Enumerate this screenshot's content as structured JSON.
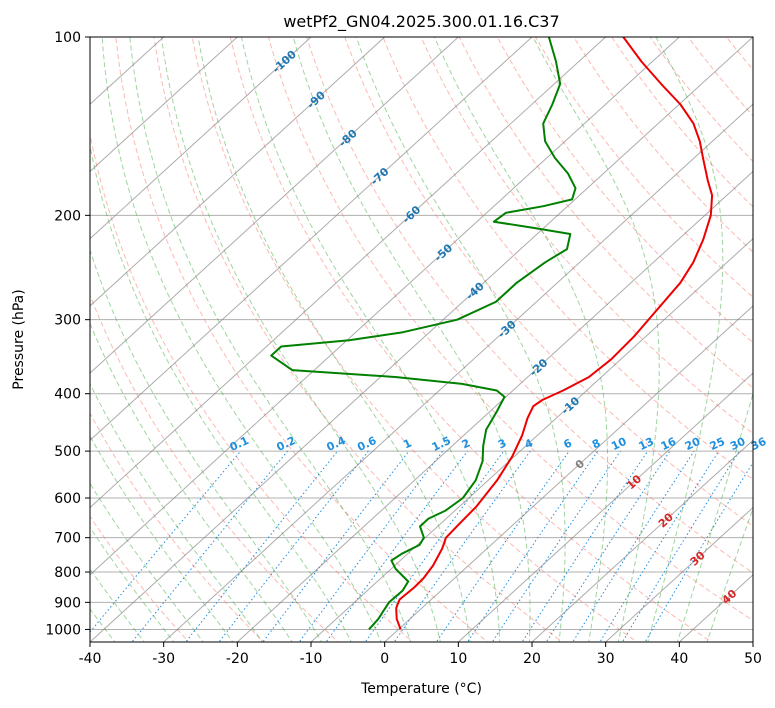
{
  "chart_data": {
    "type": "line",
    "title": "wetPf2_GN04.2025.300.01.16.C37",
    "xlabel": "Temperature (°C)",
    "ylabel": "Pressure (hPa)",
    "xlim": [
      -40,
      50
    ],
    "ylim": [
      1050,
      100
    ],
    "y_scale": "log",
    "x_ticks": [
      "-40",
      "-30",
      "-20",
      "-10",
      "0",
      "10",
      "20",
      "30",
      "40",
      "50"
    ],
    "y_ticks": [
      "100",
      "200",
      "300",
      "400",
      "500",
      "600",
      "700",
      "800",
      "900",
      "1000"
    ],
    "grid": true,
    "isotherm_labels": [
      "-100",
      "-90",
      "-80",
      "-70",
      "-60",
      "-50",
      "-40",
      "-30",
      "-20",
      "-10",
      "0",
      "10",
      "20",
      "30",
      "40"
    ],
    "mixing_ratio_labels": [
      "0.1",
      "0.2",
      "0.4",
      "0.6",
      "1",
      "1.5",
      "2",
      "3",
      "4",
      "6",
      "8",
      "10",
      "13",
      "16",
      "20",
      "25",
      "30",
      "36"
    ],
    "colors": {
      "temperature": "#ee0000",
      "dewpoint": "#008000",
      "dry_adiabat": "#fa8072",
      "moist_adiabat": "#2ca02c",
      "mixing_ratio": "#1f8fe0",
      "isotherm": "#808080",
      "isotherm_label_cold": "#1f77b4",
      "isotherm_label_warm": "#d62728",
      "isotherm_label_zero": "#808080"
    },
    "series": [
      {
        "role": "temperature",
        "points": [
          {
            "p": 1000,
            "t": 0.3
          },
          {
            "p": 960,
            "t": -1.8
          },
          {
            "p": 920,
            "t": -3.5
          },
          {
            "p": 890,
            "t": -4.3
          },
          {
            "p": 850,
            "t": -4.1
          },
          {
            "p": 820,
            "t": -4.2
          },
          {
            "p": 780,
            "t": -4.8
          },
          {
            "p": 730,
            "t": -6.1
          },
          {
            "p": 700,
            "t": -7.2
          },
          {
            "p": 670,
            "t": -7.4
          },
          {
            "p": 620,
            "t": -7.7
          },
          {
            "p": 560,
            "t": -8.8
          },
          {
            "p": 510,
            "t": -10.3
          },
          {
            "p": 470,
            "t": -12.1
          },
          {
            "p": 440,
            "t": -13.9
          },
          {
            "p": 420,
            "t": -14.9
          },
          {
            "p": 410,
            "t": -14.6
          },
          {
            "p": 395,
            "t": -13.2
          },
          {
            "p": 375,
            "t": -11.7
          },
          {
            "p": 350,
            "t": -11.3
          },
          {
            "p": 320,
            "t": -11.6
          },
          {
            "p": 290,
            "t": -12.4
          },
          {
            "p": 260,
            "t": -13.3
          },
          {
            "p": 240,
            "t": -14.6
          },
          {
            "p": 220,
            "t": -16.6
          },
          {
            "p": 200,
            "t": -19.2
          },
          {
            "p": 185,
            "t": -22.0
          },
          {
            "p": 175,
            "t": -24.7
          },
          {
            "p": 160,
            "t": -28.8
          },
          {
            "p": 150,
            "t": -31.7
          },
          {
            "p": 140,
            "t": -35.2
          },
          {
            "p": 130,
            "t": -39.8
          },
          {
            "p": 120,
            "t": -45.5
          },
          {
            "p": 110,
            "t": -51.5
          },
          {
            "p": 100,
            "t": -57.6
          }
        ]
      },
      {
        "role": "dewpoint",
        "points": [
          {
            "p": 1000,
            "t": -4.0
          },
          {
            "p": 960,
            "t": -4.3
          },
          {
            "p": 930,
            "t": -4.8
          },
          {
            "p": 900,
            "t": -5.3
          },
          {
            "p": 860,
            "t": -5.2
          },
          {
            "p": 830,
            "t": -5.8
          },
          {
            "p": 790,
            "t": -9.4
          },
          {
            "p": 765,
            "t": -11.2
          },
          {
            "p": 745,
            "t": -10.8
          },
          {
            "p": 720,
            "t": -9.7
          },
          {
            "p": 700,
            "t": -10.2
          },
          {
            "p": 670,
            "t": -12.4
          },
          {
            "p": 650,
            "t": -12.4
          },
          {
            "p": 630,
            "t": -11.3
          },
          {
            "p": 600,
            "t": -10.8
          },
          {
            "p": 560,
            "t": -11.7
          },
          {
            "p": 520,
            "t": -13.6
          },
          {
            "p": 490,
            "t": -15.8
          },
          {
            "p": 460,
            "t": -17.8
          },
          {
            "p": 430,
            "t": -19.0
          },
          {
            "p": 405,
            "t": -20.2
          },
          {
            "p": 395,
            "t": -22.2
          },
          {
            "p": 385,
            "t": -27.9
          },
          {
            "p": 375,
            "t": -37.8
          },
          {
            "p": 365,
            "t": -53.0
          },
          {
            "p": 345,
            "t": -58.0
          },
          {
            "p": 333,
            "t": -58.0
          },
          {
            "p": 325,
            "t": -49.7
          },
          {
            "p": 315,
            "t": -43.6
          },
          {
            "p": 300,
            "t": -38.1
          },
          {
            "p": 280,
            "t": -35.5
          },
          {
            "p": 260,
            "t": -35.5
          },
          {
            "p": 240,
            "t": -34.7
          },
          {
            "p": 228,
            "t": -33.7
          },
          {
            "p": 215,
            "t": -35.5
          },
          {
            "p": 210,
            "t": -41.4
          },
          {
            "p": 205,
            "t": -47.7
          },
          {
            "p": 198,
            "t": -47.4
          },
          {
            "p": 193,
            "t": -43.3
          },
          {
            "p": 188,
            "t": -40.4
          },
          {
            "p": 180,
            "t": -41.6
          },
          {
            "p": 170,
            "t": -44.8
          },
          {
            "p": 160,
            "t": -48.9
          },
          {
            "p": 150,
            "t": -52.7
          },
          {
            "p": 140,
            "t": -55.6
          },
          {
            "p": 130,
            "t": -57.2
          },
          {
            "p": 120,
            "t": -59.2
          },
          {
            "p": 110,
            "t": -63.1
          },
          {
            "p": 100,
            "t": -67.7
          }
        ]
      }
    ]
  }
}
